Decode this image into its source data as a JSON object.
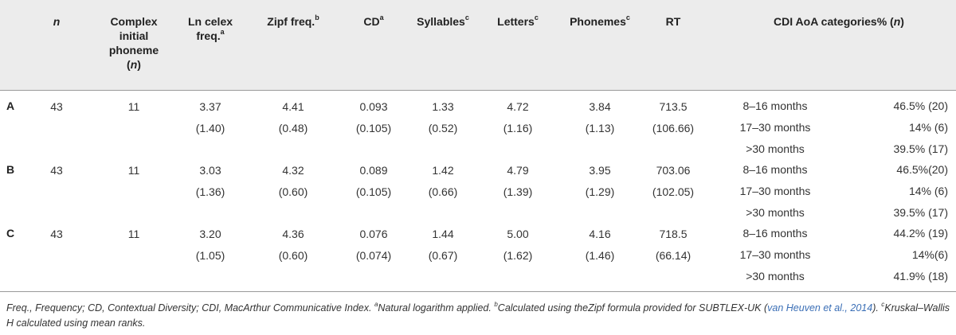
{
  "headers": {
    "n": "n",
    "complex": [
      "Complex",
      "initial",
      "phoneme",
      "(n)"
    ],
    "lncelex": [
      "Ln celex",
      "freq."
    ],
    "lncelex_sup": "a",
    "zipf": "Zipf freq.",
    "zipf_sup": "b",
    "cd": "CD",
    "cd_sup": "a",
    "syllables": "Syllables",
    "syllables_sup": "c",
    "letters": "Letters",
    "letters_sup": "c",
    "phonemes": "Phonemes",
    "phonemes_sup": "c",
    "rt": "RT",
    "cdi": "CDI AoA categories% (n)"
  },
  "rows": [
    {
      "label": "A",
      "n": "43",
      "complex": "11",
      "lncelex": [
        "3.37",
        "(1.40)"
      ],
      "zipf": [
        "4.41",
        "(0.48)"
      ],
      "cd": [
        "0.093",
        "(0.105)"
      ],
      "syllables": [
        "1.33",
        "(0.52)"
      ],
      "letters": [
        "4.72",
        "(1.16)"
      ],
      "phonemes": [
        "3.84",
        "(1.13)"
      ],
      "rt": [
        "713.5",
        "(106.66)"
      ],
      "aoa": [
        {
          "cat": "8–16 months",
          "pct": "46.5% (20)"
        },
        {
          "cat": "17–30 months",
          "pct": "14% (6)"
        },
        {
          "cat": ">30 months",
          "pct": "39.5% (17)"
        }
      ]
    },
    {
      "label": "B",
      "n": "43",
      "complex": "11",
      "lncelex": [
        "3.03",
        "(1.36)"
      ],
      "zipf": [
        "4.32",
        "(0.60)"
      ],
      "cd": [
        "0.089",
        "(0.105)"
      ],
      "syllables": [
        "1.42",
        "(0.66)"
      ],
      "letters": [
        "4.79",
        "(1.39)"
      ],
      "phonemes": [
        "3.95",
        "(1.29)"
      ],
      "rt": [
        "703.06",
        "(102.05)"
      ],
      "aoa": [
        {
          "cat": "8–16 months",
          "pct": "46.5%(20)"
        },
        {
          "cat": "17–30 months",
          "pct": "14% (6)"
        },
        {
          "cat": ">30 months",
          "pct": "39.5% (17)"
        }
      ]
    },
    {
      "label": "C",
      "n": "43",
      "complex": "11",
      "lncelex": [
        "3.20",
        "(1.05)"
      ],
      "zipf": [
        "4.36",
        "(0.60)"
      ],
      "cd": [
        "0.076",
        "(0.074)"
      ],
      "syllables": [
        "1.44",
        "(0.67)"
      ],
      "letters": [
        "5.00",
        "(1.62)"
      ],
      "phonemes": [
        "4.16",
        "(1.46)"
      ],
      "rt": [
        "718.5",
        "(66.14)"
      ],
      "aoa": [
        {
          "cat": "8–16 months",
          "pct": "44.2% (19)"
        },
        {
          "cat": "17–30 months",
          "pct": "14%(6)"
        },
        {
          "cat": ">30 months",
          "pct": "41.9% (18)"
        }
      ]
    }
  ],
  "footnote": {
    "part1": "Freq., Frequency; CD, Contextual Diversity; CDI, MacArthur Communicative Index. ",
    "sup_a": "a",
    "part2": "Natural logarithm applied. ",
    "sup_b": "b",
    "part3": "Calculated using theZipf formula provided for SUBTLEX-UK (",
    "citation": "van Heuven et al., 2014",
    "part4": "). ",
    "sup_c": "c",
    "part5": "Kruskal–Wallis H calculated using mean ranks."
  }
}
